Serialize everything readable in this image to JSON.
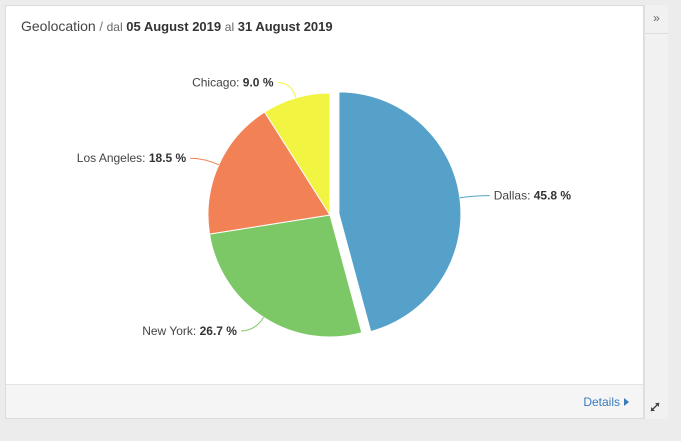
{
  "header": {
    "title": "Geolocation",
    "separator": "/",
    "from_prefix": "dal",
    "from_date": "05 August 2019",
    "to_prefix": "al",
    "to_date": "31 August 2019"
  },
  "footer": {
    "details_label": "Details"
  },
  "panel": {
    "collapse_glyph": "»"
  },
  "chart_data": {
    "type": "pie",
    "title": "",
    "slices": [
      {
        "label": "Dallas",
        "value": 45.8,
        "display": "45.8 %",
        "color": "#56a1c9",
        "exploded": true
      },
      {
        "label": "New York",
        "value": 26.7,
        "display": "26.7 %",
        "color": "#7dc866",
        "exploded": false
      },
      {
        "label": "Los Angeles",
        "value": 18.5,
        "display": "18.5 %",
        "color": "#f28256",
        "exploded": false
      },
      {
        "label": "Chicago",
        "value": 9.0,
        "display": "9.0 %",
        "color": "#f2f442",
        "exploded": false
      }
    ],
    "label_format": "label: value %",
    "legend": "none",
    "start_angle": "top, clockwise"
  },
  "icons": {
    "collapse": "double-chevron-right-icon",
    "expand": "expand-arrows-icon",
    "details": "caret-right-icon"
  }
}
